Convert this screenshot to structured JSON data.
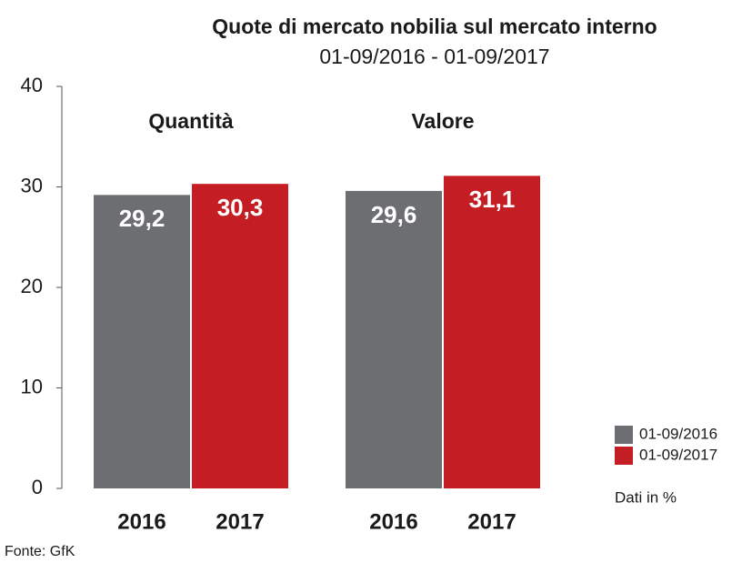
{
  "chart_data": {
    "type": "bar",
    "title": "Quote di mercato nobilia sul mercato interno",
    "subtitle": "01-09/2016 - 01-09/2017",
    "categories": [
      "Quantità",
      "Valore"
    ],
    "bar_labels": [
      "2016",
      "2017"
    ],
    "series": [
      {
        "name": "01-09/2016",
        "color": "#6d6e71",
        "values": [
          29.2,
          29.6
        ],
        "value_labels": [
          "29,2",
          "29,6"
        ]
      },
      {
        "name": "01-09/2017",
        "color": "#c41e24",
        "values": [
          30.3,
          31.1
        ],
        "value_labels": [
          "30,3",
          "31,1"
        ]
      }
    ],
    "ylim": [
      0,
      40
    ],
    "yticks": [
      0,
      10,
      20,
      30,
      40
    ],
    "grid": false,
    "note": "Dati in %",
    "source": "Fonte: GfK"
  }
}
